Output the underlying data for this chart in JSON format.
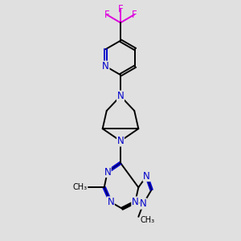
{
  "bg_color": "#e0e0e0",
  "bond_color": "#000000",
  "N_color": "#0000cc",
  "F_color": "#dd00dd",
  "lw": 1.4,
  "fs": 8.5,
  "xlim": [
    55,
    205
  ],
  "ylim": [
    295,
    5
  ]
}
